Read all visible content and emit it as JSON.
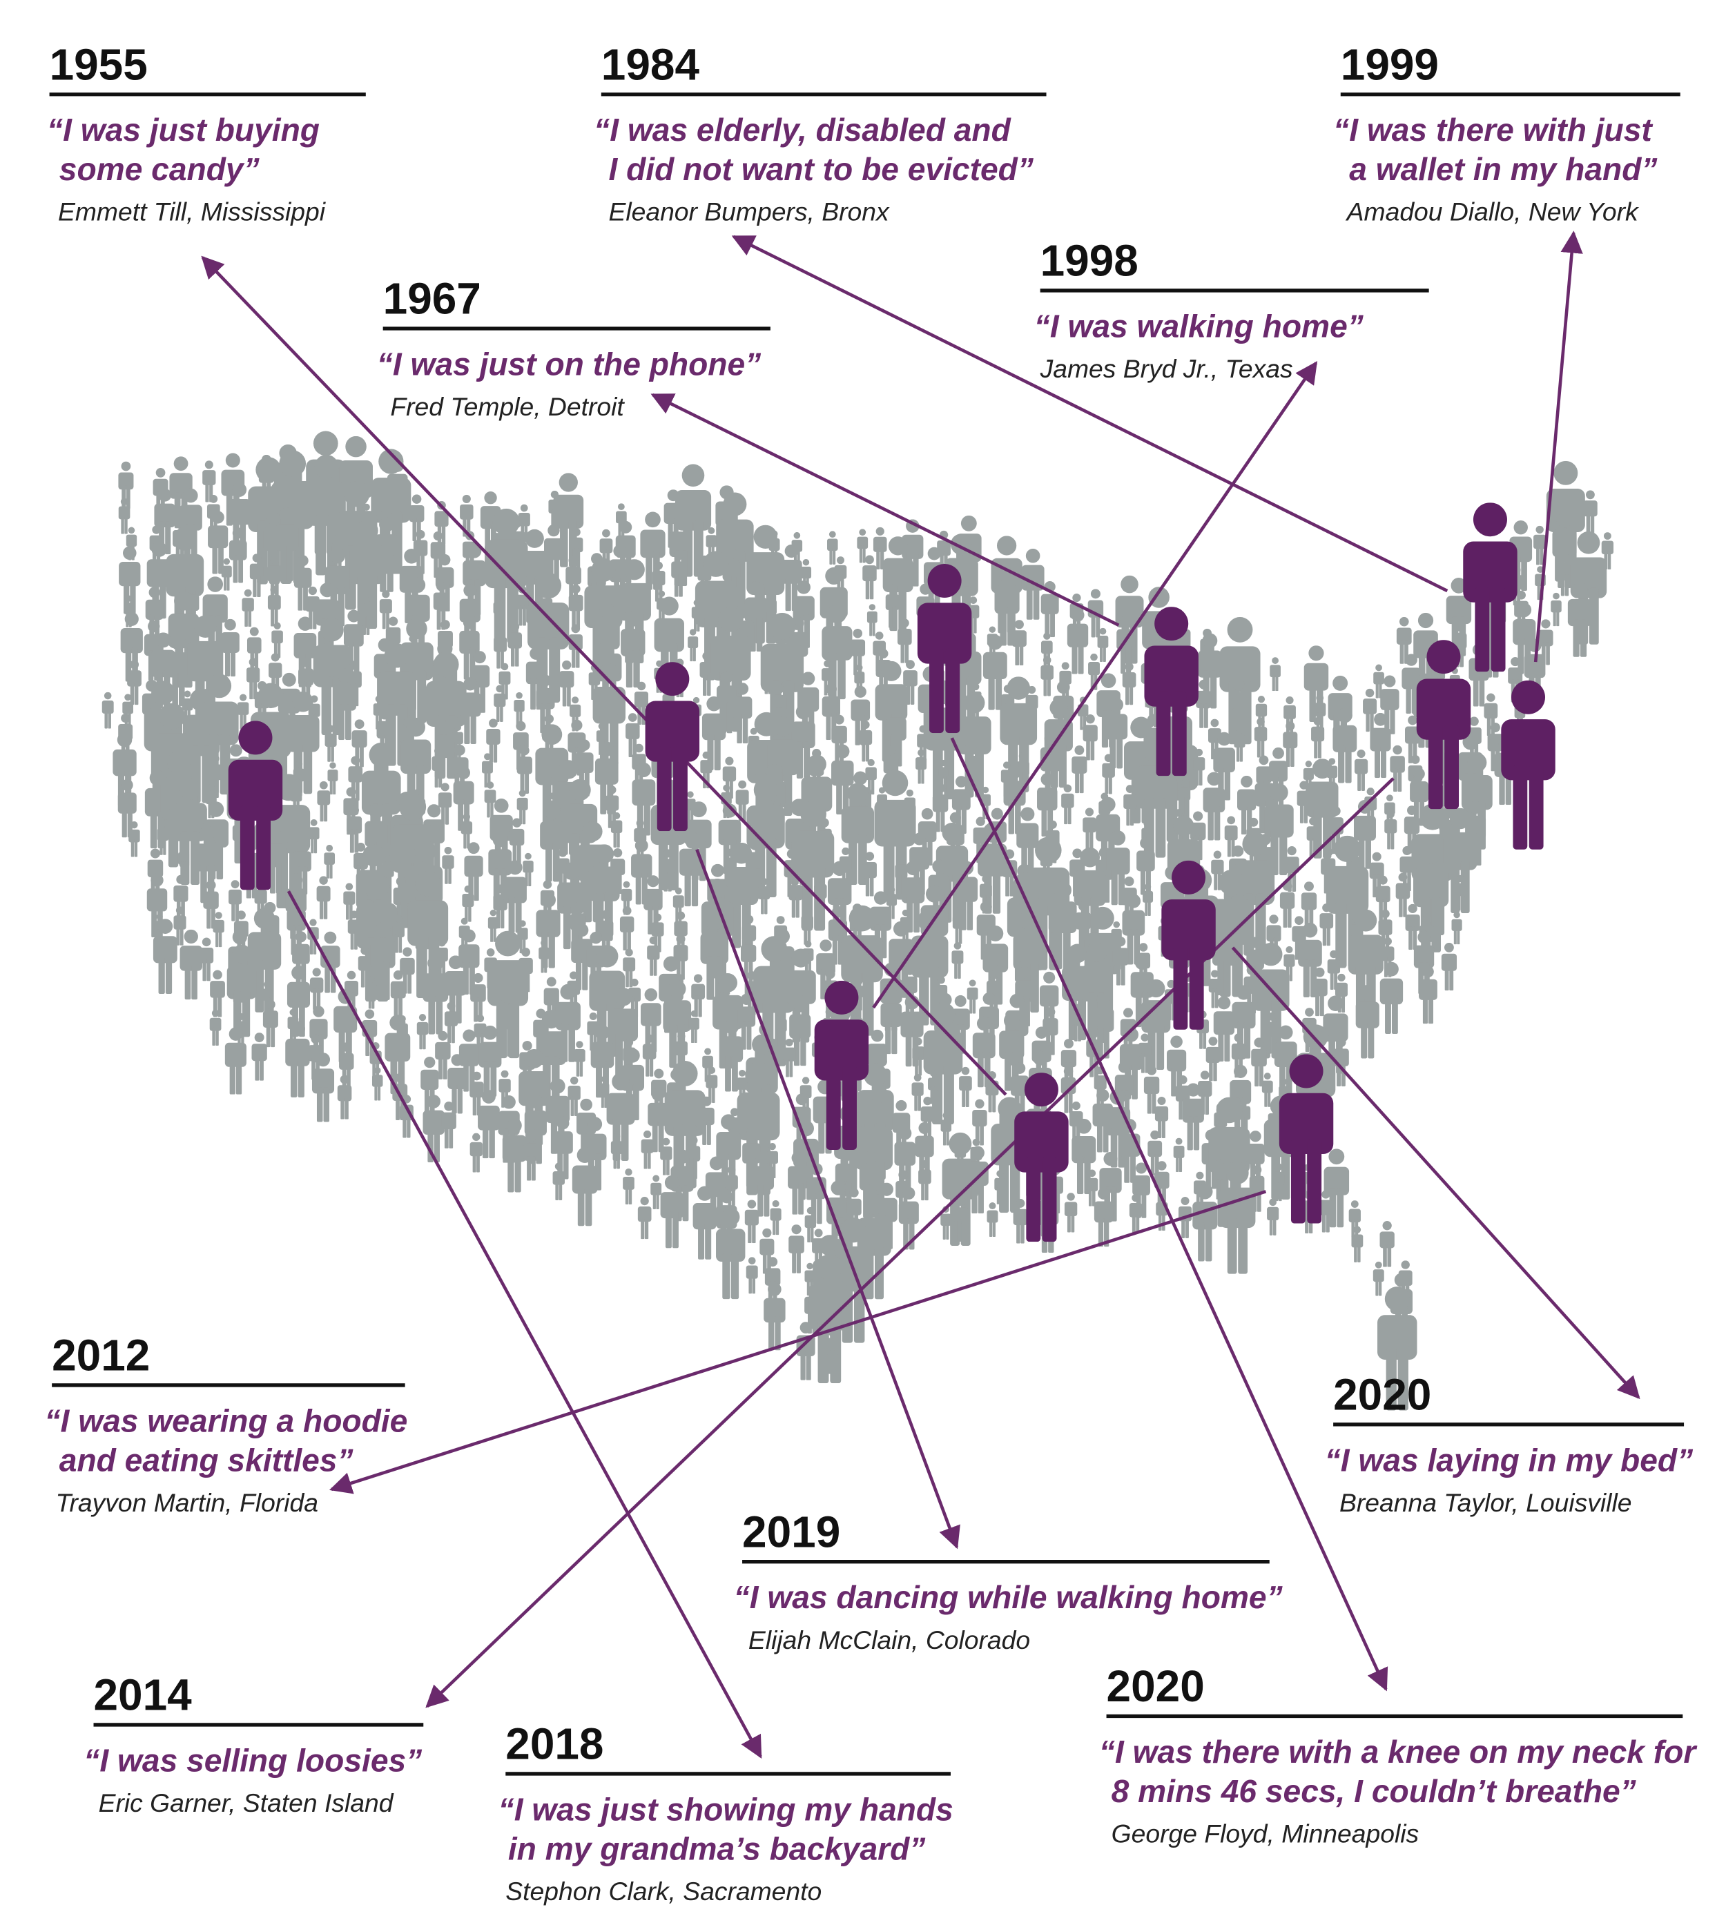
{
  "entries": [
    {
      "year": "1955",
      "quote": [
        "“I was just buying",
        "some candy”"
      ],
      "name": "Emmett Till, Mississippi"
    },
    {
      "year": "1984",
      "quote": [
        "“I was elderly, disabled and",
        "I did not want to be evicted”"
      ],
      "name": "Eleanor Bumpers, Bronx"
    },
    {
      "year": "1999",
      "quote": [
        "“I was there with just",
        "a wallet in my hand”"
      ],
      "name": "Amadou Diallo, New York"
    },
    {
      "year": "1998",
      "quote": [
        "“I was walking home”"
      ],
      "name": "James Bryd Jr., Texas"
    },
    {
      "year": "1967",
      "quote": [
        "“I was just on the phone”"
      ],
      "name": "Fred Temple, Detroit"
    },
    {
      "year": "2012",
      "quote": [
        "“I was wearing a hoodie",
        "and eating skittles”"
      ],
      "name": "Trayvon Martin, Florida"
    },
    {
      "year": "2020",
      "quote": [
        "“I was laying in my bed”"
      ],
      "name": "Breanna Taylor, Louisville"
    },
    {
      "year": "2019",
      "quote": [
        "“I was dancing while walking home”"
      ],
      "name": "Elijah McClain, Colorado"
    },
    {
      "year": "2014",
      "quote": [
        "“I was selling loosies”"
      ],
      "name": "Eric Garner, Staten Island"
    },
    {
      "year": "2020",
      "quote": [
        "“I was there with a knee on my neck for",
        "8 mins 46 secs, I couldn’t breathe”"
      ],
      "name": "George Floyd, Minneapolis"
    },
    {
      "year": "2018",
      "quote": [
        "“I was just showing my hands",
        "in my grandma’s backyard”"
      ],
      "name": "Stephon Clark, Sacramento"
    }
  ]
}
